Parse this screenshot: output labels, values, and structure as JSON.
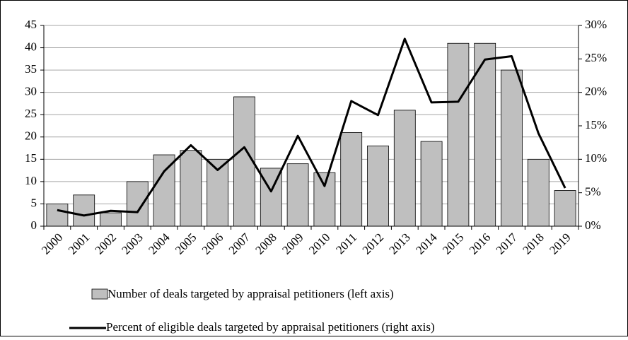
{
  "chart_data": {
    "type": "bar_line",
    "categories": [
      "2000",
      "2001",
      "2002",
      "2003",
      "2004",
      "2005",
      "2006",
      "2007",
      "2008",
      "2009",
      "2010",
      "2011",
      "2012",
      "2013",
      "2014",
      "2015",
      "2016",
      "2017",
      "2018",
      "2019"
    ],
    "series": [
      {
        "name": "Number of deals targeted by appraisal petitioners (left axis)",
        "type": "bar",
        "color": "#bfbfbf",
        "values": [
          5,
          7,
          3,
          10,
          16,
          17,
          15,
          29,
          13,
          14,
          12,
          21,
          18,
          26,
          19,
          41,
          41,
          35,
          15,
          8
        ]
      },
      {
        "name": "Percent of eligible deals targeted by appraisal petitioners (right axis)",
        "type": "line",
        "axis": "y2",
        "color": "#000000",
        "values": [
          2.4,
          1.6,
          2.3,
          2.1,
          8.2,
          12.1,
          8.4,
          11.8,
          5.2,
          13.5,
          6.0,
          18.7,
          16.6,
          28.0,
          18.5,
          18.6,
          24.9,
          25.4,
          13.9,
          5.7
        ]
      }
    ],
    "ylim": [
      0,
      45
    ],
    "yticks": [
      0,
      5,
      10,
      15,
      20,
      25,
      30,
      35,
      40,
      45
    ],
    "y2lim": [
      0,
      30
    ],
    "y2ticks": [
      {
        "value": 0,
        "label": "0%"
      },
      {
        "value": 5,
        "label": "5%"
      },
      {
        "value": 10,
        "label": "10%"
      },
      {
        "value": 15,
        "label": "15%"
      },
      {
        "value": 20,
        "label": "20%"
      },
      {
        "value": 25,
        "label": "25%"
      },
      {
        "value": 30,
        "label": "30%"
      }
    ],
    "grid": true,
    "legend": "bottom"
  }
}
